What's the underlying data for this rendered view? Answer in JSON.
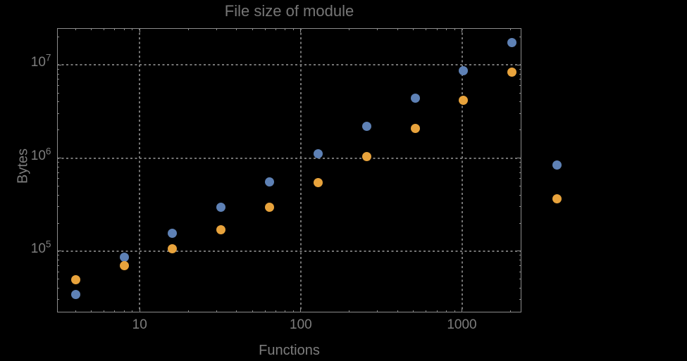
{
  "title": "File size of module",
  "colors": {
    "background": "#000000",
    "frame": "#8c8c8c",
    "grid": "#757575",
    "tick": "#8c8c8c",
    "text": "#7d7d7d",
    "title_text": "#767676",
    "series_blue": "#5E81B5",
    "series_orange": "#E8A33C"
  },
  "chart_data": {
    "type": "scatter",
    "title": "File size of module",
    "xlabel": "Functions",
    "ylabel": "Bytes",
    "xscale": "log",
    "yscale": "log",
    "xlim": [
      3.07,
      2342
    ],
    "ylim": [
      21900,
      24900000
    ],
    "grid": "dotted gridlines at decade ticks, gray on black",
    "legend": "none",
    "frame": true,
    "plot_range_clipping": false,
    "x_major_ticks": [
      10,
      100,
      1000
    ],
    "x_major_tick_labels": [
      "10",
      "100",
      "1000"
    ],
    "y_major_ticks": [
      100000,
      1000000,
      10000000
    ],
    "y_major_tick_base": "10",
    "y_major_tick_exponents": [
      "5",
      "6",
      "7"
    ],
    "series": [
      {
        "name": "series-blue",
        "color": "#5E81B5",
        "marker": "circle",
        "points": [
          [
            4,
            34000
          ],
          [
            8,
            86000
          ],
          [
            16,
            156000
          ],
          [
            32,
            297000
          ],
          [
            64,
            553000
          ],
          [
            128,
            1110000
          ],
          [
            256,
            2190000
          ],
          [
            512,
            4380000
          ],
          [
            1024,
            8630000
          ],
          [
            2048,
            17300000
          ],
          [
            3900,
            841000
          ]
        ]
      },
      {
        "name": "series-orange",
        "color": "#E8A33C",
        "marker": "circle",
        "points": [
          [
            4,
            49000
          ],
          [
            8,
            70000
          ],
          [
            16,
            106000
          ],
          [
            32,
            170000
          ],
          [
            64,
            297000
          ],
          [
            128,
            544000
          ],
          [
            256,
            1035000
          ],
          [
            512,
            2075000
          ],
          [
            1024,
            4160000
          ],
          [
            2048,
            8340000
          ],
          [
            3900,
            365000
          ]
        ]
      }
    ]
  }
}
